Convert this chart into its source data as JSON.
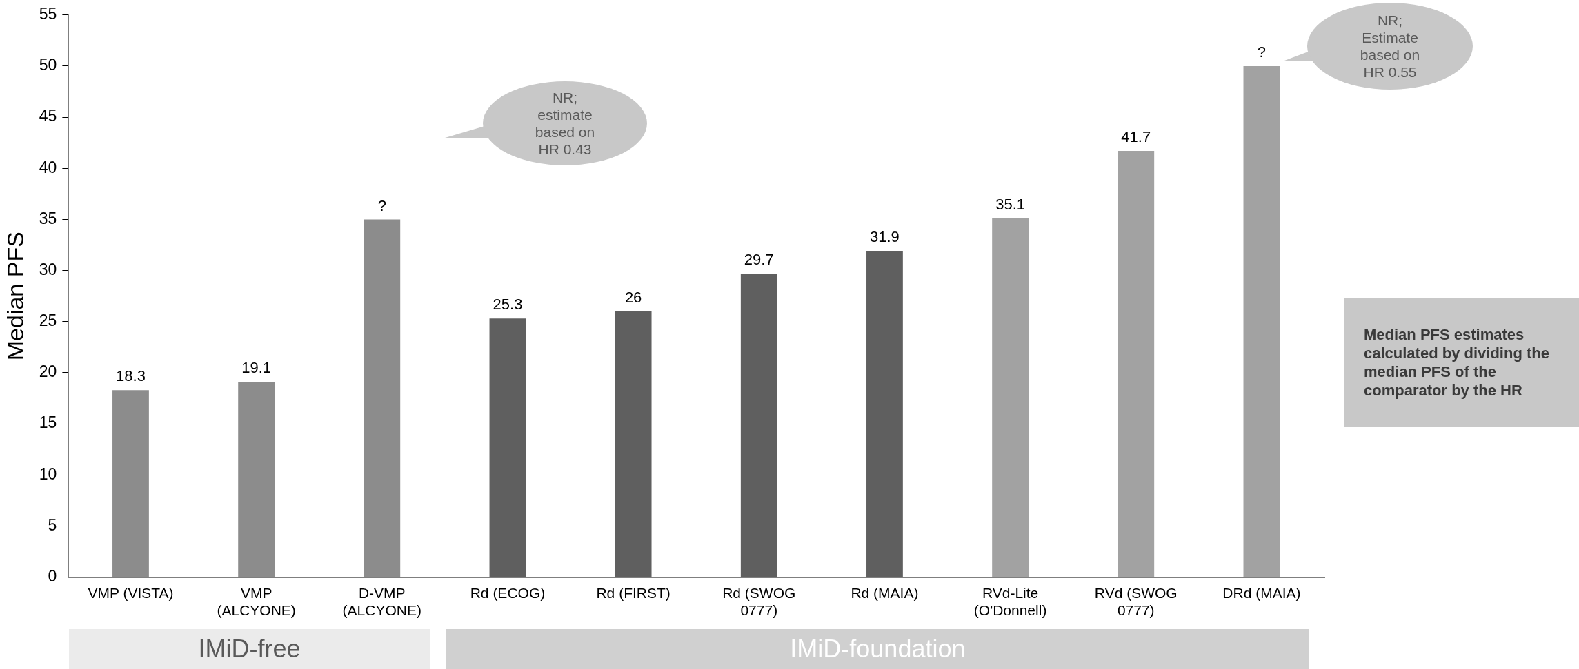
{
  "chart_data": {
    "type": "bar",
    "ylabel": "Median PFS",
    "categories": [
      "VMP (VISTA)",
      "VMP (ALCYONE)",
      "D-VMP (ALCYONE)",
      "Rd (ECOG)",
      "Rd (FIRST)",
      "Rd (SWOG 0777)",
      "Rd (MAIA)",
      "RVd-Lite (O'Donnell)",
      "RVd (SWOG 0777)",
      "DRd (MAIA)"
    ],
    "values": [
      18.3,
      19.1,
      35,
      25.3,
      26,
      29.7,
      31.9,
      35.1,
      41.7,
      50
    ],
    "colors": [
      "#8c8c8c",
      "#8c8c8c",
      "#8c8c8c",
      "#5f5f5f",
      "#5f5f5f",
      "#5f5f5f",
      "#5f5f5f",
      "#a2a2a2",
      "#a2a2a2",
      "#a2a2a2"
    ],
    "value_labels": [
      "18.3",
      "19.1",
      "?",
      "25.3",
      "26",
      "29.7",
      "31.9",
      "35.1",
      "41.7",
      "?"
    ],
    "ylim": [
      0,
      55
    ],
    "yticks": [
      0,
      5,
      10,
      15,
      20,
      25,
      30,
      35,
      40,
      45,
      50,
      55
    ],
    "grid": false,
    "legend": false,
    "annotations": [
      "NR; estimate based on HR 0.43",
      "NR; Estimate based on HR 0.55",
      "Median PFS estimates calculated by dividing the median PFS of the comparator by the HR",
      "IMiD-free",
      "IMiD-foundation"
    ]
  }
}
